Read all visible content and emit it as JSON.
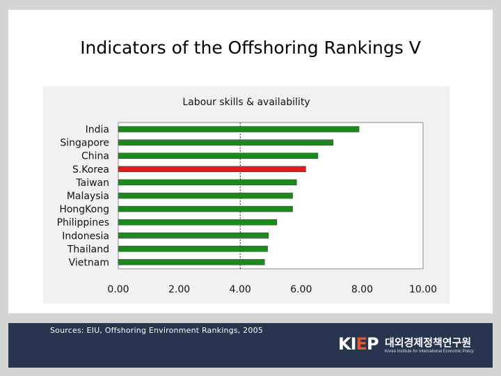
{
  "slide": {
    "title": "Indicators of the Offshoring Rankings Ⅴ",
    "sources": "Sources: EIU, Offshoring Environment Rankings, 2005",
    "logo": {
      "mark_main": "KI",
      "mark_accent": "E",
      "mark_end": "P",
      "name": "대외경제정책연구원",
      "subtitle": "Korea Institute for International Economic Policy"
    },
    "colors": {
      "background": "#d4d4d4",
      "footer": "#27354f",
      "bar_default": "#1a8a1a",
      "bar_highlight": "#e01b1b"
    }
  },
  "chart_data": {
    "type": "bar",
    "orientation": "horizontal",
    "title": "Labour skills & availability",
    "categories": [
      "India",
      "Singapore",
      "China",
      "S.Korea",
      "Taiwan",
      "Malaysia",
      "HongKong",
      "Philippines",
      "Indonesia",
      "Thailand",
      "Vietnam"
    ],
    "values": [
      7.9,
      7.05,
      6.55,
      6.15,
      5.85,
      5.72,
      5.72,
      5.2,
      4.93,
      4.9,
      4.8
    ],
    "highlight": "S.Korea",
    "xlim": [
      0,
      10
    ],
    "xticks": [
      "0.00",
      "2.00",
      "4.00",
      "6.00",
      "8.00",
      "10.00"
    ],
    "reference_line": 4.0,
    "xlabel": "",
    "ylabel": ""
  }
}
